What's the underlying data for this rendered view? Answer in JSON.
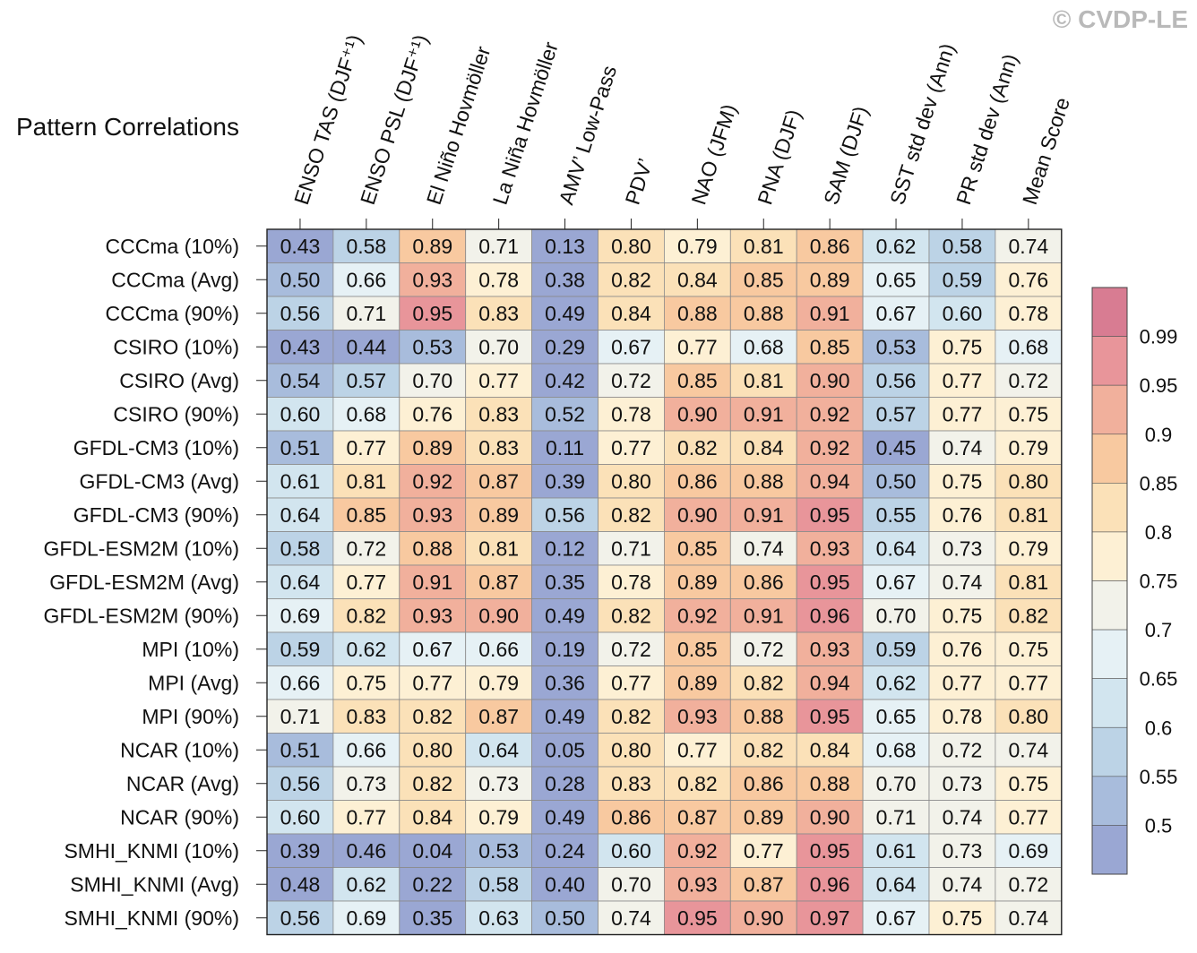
{
  "title": "Pattern Correlations",
  "watermark": "© CVDP-LE",
  "chart_data": {
    "type": "heatmap",
    "columns": [
      "ENSO TAS (DJF⁺¹)",
      "ENSO PSL (DJF⁺¹)",
      "El Niño Hovmöller",
      "La Niña Hovmöller",
      "AMV’ Low-Pass",
      "PDV’",
      "NAO (JFM)",
      "PNA (DJF)",
      "SAM (DJF)",
      "SST std dev (Ann)",
      "PR std dev (Ann)",
      "Mean Score"
    ],
    "rows": [
      "CCCma (10%)",
      "CCCma (Avg)",
      "CCCma (90%)",
      "CSIRO (10%)",
      "CSIRO (Avg)",
      "CSIRO (90%)",
      "GFDL-CM3 (10%)",
      "GFDL-CM3 (Avg)",
      "GFDL-CM3 (90%)",
      "GFDL-ESM2M (10%)",
      "GFDL-ESM2M (Avg)",
      "GFDL-ESM2M (90%)",
      "MPI (10%)",
      "MPI (Avg)",
      "MPI (90%)",
      "NCAR (10%)",
      "NCAR (Avg)",
      "NCAR (90%)",
      "SMHI_KNMI (10%)",
      "SMHI_KNMI (Avg)",
      "SMHI_KNMI (90%)"
    ],
    "values": [
      [
        "0.43",
        "0.58",
        "0.89",
        "0.71",
        "0.13",
        "0.80",
        "0.79",
        "0.81",
        "0.86",
        "0.62",
        "0.58",
        "0.74"
      ],
      [
        "0.50",
        "0.66",
        "0.93",
        "0.78",
        "0.38",
        "0.82",
        "0.84",
        "0.85",
        "0.89",
        "0.65",
        "0.59",
        "0.76"
      ],
      [
        "0.56",
        "0.71",
        "0.95",
        "0.83",
        "0.49",
        "0.84",
        "0.88",
        "0.88",
        "0.91",
        "0.67",
        "0.60",
        "0.78"
      ],
      [
        "0.43",
        "0.44",
        "0.53",
        "0.70",
        "0.29",
        "0.67",
        "0.77",
        "0.68",
        "0.85",
        "0.53",
        "0.75",
        "0.68"
      ],
      [
        "0.54",
        "0.57",
        "0.70",
        "0.77",
        "0.42",
        "0.72",
        "0.85",
        "0.81",
        "0.90",
        "0.56",
        "0.77",
        "0.72"
      ],
      [
        "0.60",
        "0.68",
        "0.76",
        "0.83",
        "0.52",
        "0.78",
        "0.90",
        "0.91",
        "0.92",
        "0.57",
        "0.77",
        "0.75"
      ],
      [
        "0.51",
        "0.77",
        "0.89",
        "0.83",
        "0.11",
        "0.77",
        "0.82",
        "0.84",
        "0.92",
        "0.45",
        "0.74",
        "0.79"
      ],
      [
        "0.61",
        "0.81",
        "0.92",
        "0.87",
        "0.39",
        "0.80",
        "0.86",
        "0.88",
        "0.94",
        "0.50",
        "0.75",
        "0.80"
      ],
      [
        "0.64",
        "0.85",
        "0.93",
        "0.89",
        "0.56",
        "0.82",
        "0.90",
        "0.91",
        "0.95",
        "0.55",
        "0.76",
        "0.81"
      ],
      [
        "0.58",
        "0.72",
        "0.88",
        "0.81",
        "0.12",
        "0.71",
        "0.85",
        "0.74",
        "0.93",
        "0.64",
        "0.73",
        "0.79"
      ],
      [
        "0.64",
        "0.77",
        "0.91",
        "0.87",
        "0.35",
        "0.78",
        "0.89",
        "0.86",
        "0.95",
        "0.67",
        "0.74",
        "0.81"
      ],
      [
        "0.69",
        "0.82",
        "0.93",
        "0.90",
        "0.49",
        "0.82",
        "0.92",
        "0.91",
        "0.96",
        "0.70",
        "0.75",
        "0.82"
      ],
      [
        "0.59",
        "0.62",
        "0.67",
        "0.66",
        "0.19",
        "0.72",
        "0.85",
        "0.72",
        "0.93",
        "0.59",
        "0.76",
        "0.75"
      ],
      [
        "0.66",
        "0.75",
        "0.77",
        "0.79",
        "0.36",
        "0.77",
        "0.89",
        "0.82",
        "0.94",
        "0.62",
        "0.77",
        "0.77"
      ],
      [
        "0.71",
        "0.83",
        "0.82",
        "0.87",
        "0.49",
        "0.82",
        "0.93",
        "0.88",
        "0.95",
        "0.65",
        "0.78",
        "0.80"
      ],
      [
        "0.51",
        "0.66",
        "0.80",
        "0.64",
        "0.05",
        "0.80",
        "0.77",
        "0.82",
        "0.84",
        "0.68",
        "0.72",
        "0.74"
      ],
      [
        "0.56",
        "0.73",
        "0.82",
        "0.73",
        "0.28",
        "0.83",
        "0.82",
        "0.86",
        "0.88",
        "0.70",
        "0.73",
        "0.75"
      ],
      [
        "0.60",
        "0.77",
        "0.84",
        "0.79",
        "0.49",
        "0.86",
        "0.87",
        "0.89",
        "0.90",
        "0.71",
        "0.74",
        "0.77"
      ],
      [
        "0.39",
        "0.46",
        "0.04",
        "0.53",
        "0.24",
        "0.60",
        "0.92",
        "0.77",
        "0.95",
        "0.61",
        "0.73",
        "0.69"
      ],
      [
        "0.48",
        "0.62",
        "0.22",
        "0.58",
        "0.40",
        "0.70",
        "0.93",
        "0.87",
        "0.96",
        "0.64",
        "0.74",
        "0.72"
      ],
      [
        "0.56",
        "0.69",
        "0.35",
        "0.63",
        "0.50",
        "0.74",
        "0.95",
        "0.90",
        "0.97",
        "0.67",
        "0.75",
        "0.74"
      ]
    ],
    "colorbar": {
      "labels": [
        "0.99",
        "0.95",
        "0.9",
        "0.85",
        "0.8",
        "0.75",
        "0.7",
        "0.65",
        "0.6",
        "0.55",
        "0.5"
      ],
      "thresholds": [
        0.5,
        0.55,
        0.6,
        0.65,
        0.7,
        0.75,
        0.8,
        0.85,
        0.9,
        0.95,
        0.99
      ],
      "colors": [
        "#9aa7d3",
        "#a8bcdc",
        "#bcd3e6",
        "#d2e5ef",
        "#e6f1f5",
        "#f2f2ea",
        "#fdf0d4",
        "#fbe1b8",
        "#f8c9a0",
        "#f1b09c",
        "#e8959a",
        "#d87c92"
      ]
    }
  }
}
